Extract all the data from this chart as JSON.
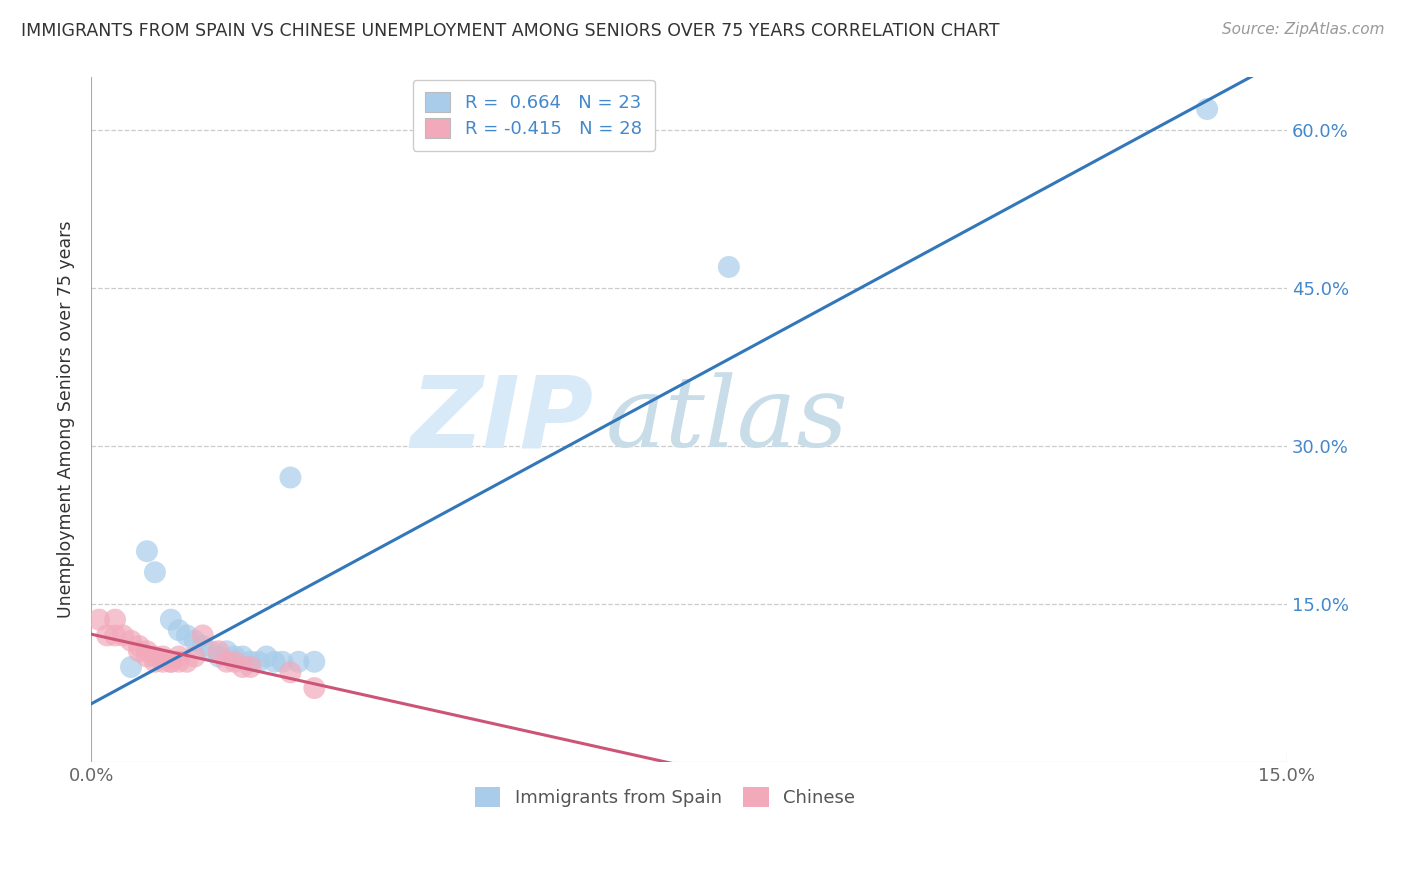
{
  "title": "IMMIGRANTS FROM SPAIN VS CHINESE UNEMPLOYMENT AMONG SENIORS OVER 75 YEARS CORRELATION CHART",
  "source": "Source: ZipAtlas.com",
  "ylabel": "Unemployment Among Seniors over 75 years",
  "xlim": [
    0.0,
    0.15
  ],
  "ylim": [
    0.0,
    0.65
  ],
  "xtick_vals": [
    0.0,
    0.15
  ],
  "xtick_labels": [
    "0.0%",
    "15.0%"
  ],
  "ytick_vals": [
    0.15,
    0.3,
    0.45,
    0.6
  ],
  "ytick_labels": [
    "15.0%",
    "30.0%",
    "45.0%",
    "60.0%"
  ],
  "legend_label_blue": "Immigrants from Spain",
  "legend_label_pink": "Chinese",
  "r_blue": "0.664",
  "n_blue": "23",
  "r_pink": "-0.415",
  "n_pink": "28",
  "watermark_zip": "ZIP",
  "watermark_atlas": "atlas",
  "blue_color": "#A8CCEA",
  "pink_color": "#F2AABB",
  "blue_line_color": "#3377BB",
  "pink_line_color": "#CC5577",
  "blue_scatter": {
    "x": [
      0.005,
      0.007,
      0.008,
      0.01,
      0.011,
      0.012,
      0.013,
      0.014,
      0.015,
      0.016,
      0.017,
      0.018,
      0.019,
      0.02,
      0.021,
      0.022,
      0.023,
      0.024,
      0.025,
      0.026,
      0.028,
      0.08,
      0.14
    ],
    "y": [
      0.09,
      0.2,
      0.18,
      0.135,
      0.125,
      0.12,
      0.115,
      0.11,
      0.105,
      0.1,
      0.105,
      0.1,
      0.1,
      0.095,
      0.095,
      0.1,
      0.095,
      0.095,
      0.27,
      0.095,
      0.095,
      0.47,
      0.62
    ]
  },
  "pink_scatter": {
    "x": [
      0.001,
      0.002,
      0.003,
      0.003,
      0.004,
      0.005,
      0.006,
      0.006,
      0.007,
      0.007,
      0.008,
      0.008,
      0.009,
      0.009,
      0.01,
      0.01,
      0.011,
      0.011,
      0.012,
      0.013,
      0.014,
      0.016,
      0.017,
      0.018,
      0.019,
      0.02,
      0.025,
      0.028
    ],
    "y": [
      0.135,
      0.12,
      0.135,
      0.12,
      0.12,
      0.115,
      0.11,
      0.105,
      0.105,
      0.1,
      0.1,
      0.095,
      0.095,
      0.1,
      0.095,
      0.095,
      0.1,
      0.095,
      0.095,
      0.1,
      0.12,
      0.105,
      0.095,
      0.095,
      0.09,
      0.09,
      0.085,
      0.07
    ]
  }
}
